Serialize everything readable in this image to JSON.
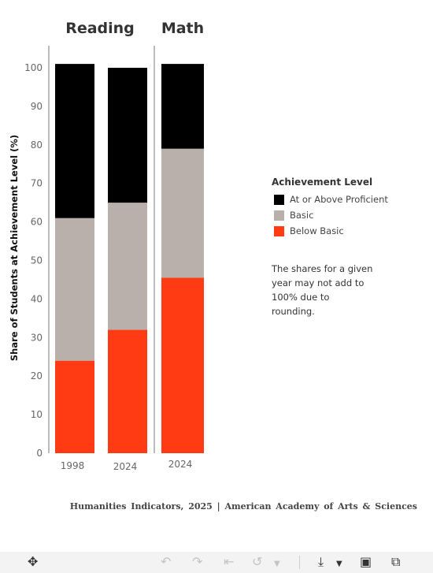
{
  "chart_data": {
    "type": "bar",
    "stacked": true,
    "ylabel": "Share of Students at Achievement Level (%)",
    "ylim": [
      0,
      100
    ],
    "yticks": [
      0,
      10,
      20,
      30,
      40,
      50,
      60,
      70,
      80,
      90,
      100
    ],
    "grid": false,
    "legend_position": "right",
    "panels": [
      {
        "title": "Reading",
        "categories": [
          "1998",
          "2024"
        ]
      },
      {
        "title": "Math",
        "categories": [
          "2024"
        ]
      }
    ],
    "series": [
      {
        "name": "Below Basic",
        "color": "#ff3b14",
        "values": [
          24,
          32,
          45.5
        ]
      },
      {
        "name": "Basic",
        "color": "#bab0ab",
        "values": [
          37,
          33,
          33.5
        ]
      },
      {
        "name": "At or Above Proficient",
        "color": "#000000",
        "values": [
          40,
          35,
          22
        ]
      }
    ]
  },
  "legend": {
    "title": "Achievement Level",
    "items": [
      {
        "label": "At or Above Proficient",
        "color": "#000000"
      },
      {
        "label": "Basic",
        "color": "#bab0ab"
      },
      {
        "label": "Below Basic",
        "color": "#ff3b14"
      }
    ]
  },
  "note": "The shares for a given year may not add to 100% due to rounding.",
  "credit": "Humanities Indicators, 2025 | American Academy of Arts & Sciences",
  "toolbar": {
    "icons": [
      "move-icon",
      "undo-icon",
      "redo-icon",
      "revert-icon",
      "refresh-icon",
      "dropdown-icon",
      "download-icon",
      "fullscreen-icon",
      "share-icon"
    ]
  }
}
